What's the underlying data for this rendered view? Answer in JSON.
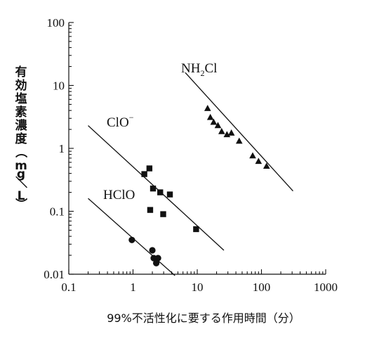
{
  "chart_data": {
    "type": "scatter",
    "xscale": "log",
    "yscale": "log",
    "xlim": [
      0.1,
      1000
    ],
    "ylim": [
      0.01,
      100
    ],
    "xticks": [
      "0.1",
      "1",
      "10",
      "100",
      "1000"
    ],
    "yticks": [
      "0.01",
      "0.1",
      "1",
      "10",
      "100"
    ],
    "xlabel": "99%不活性化に要する作用時間（分）",
    "ylabel": "有効塩素濃度（mg／L）",
    "grid": false,
    "series": [
      {
        "name": "HClO",
        "marker": "circle",
        "color": "#111111",
        "points": [
          [
            0.96,
            0.035
          ],
          [
            2.0,
            0.024
          ],
          [
            2.1,
            0.018
          ],
          [
            2.45,
            0.018
          ],
          [
            2.3,
            0.015
          ]
        ],
        "fit_line": [
          [
            0.2,
            0.16
          ],
          [
            4.5,
            0.0095
          ]
        ]
      },
      {
        "name": "ClO",
        "name_superscript": "−",
        "marker": "square",
        "color": "#111111",
        "points": [
          [
            1.5,
            0.39
          ],
          [
            1.8,
            0.48
          ],
          [
            2.05,
            0.23
          ],
          [
            2.65,
            0.2
          ],
          [
            3.75,
            0.185
          ],
          [
            1.85,
            0.105
          ],
          [
            2.95,
            0.09
          ],
          [
            9.6,
            0.052
          ]
        ],
        "fit_line": [
          [
            0.2,
            2.3
          ],
          [
            26,
            0.024
          ]
        ]
      },
      {
        "name_main": "NH",
        "name_subscript": "2",
        "name_end": "Cl",
        "marker": "triangle",
        "color": "#111111",
        "points": [
          [
            14.5,
            4.3
          ],
          [
            16,
            3.1
          ],
          [
            18,
            2.6
          ],
          [
            21,
            2.3
          ],
          [
            24,
            1.85
          ],
          [
            29,
            1.65
          ],
          [
            34,
            1.75
          ],
          [
            45,
            1.3
          ],
          [
            73,
            0.76
          ],
          [
            90,
            0.62
          ],
          [
            120,
            0.52
          ]
        ],
        "fit_line": [
          [
            6.5,
            16
          ],
          [
            310,
            0.21
          ]
        ]
      }
    ]
  }
}
